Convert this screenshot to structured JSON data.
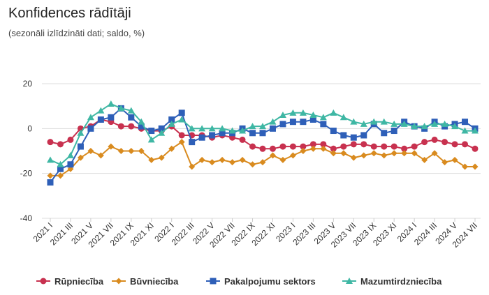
{
  "chart_data": {
    "type": "line",
    "title": "Konfidences rādītāji",
    "subtitle": "(sezonāli izlīdzināti dati; saldo, %)",
    "xlabel": "",
    "ylabel": "",
    "ylim": [
      -40,
      20
    ],
    "yticks": [
      20,
      0,
      -20,
      -40
    ],
    "grid": true,
    "legend": "bottom",
    "x": [
      "2021 I",
      "2021 II",
      "2021 III",
      "2021 IV",
      "2021 V",
      "2021 VI",
      "2021 VII",
      "2021 VIII",
      "2021 IX",
      "2021 X",
      "2021 XI",
      "2021 XII",
      "2022 I",
      "2022 II",
      "2022 III",
      "2022 IV",
      "2022 V",
      "2022 VI",
      "2022 VII",
      "2022 VIII",
      "2022 IX",
      "2022 X",
      "2022 XI",
      "2022 XII",
      "2023 I",
      "2023 II",
      "2023 III",
      "2023 IV",
      "2023 V",
      "2023 VI",
      "2023 VII",
      "2023 VIII",
      "2023 IX",
      "2023 X",
      "2023 XI",
      "2023 XII",
      "2024 I",
      "2024 II",
      "2024 III",
      "2024 IV",
      "2024 V",
      "2024 VI",
      "2024 VII"
    ],
    "x_tick_labels": [
      "2021 I",
      "2021 III",
      "2021 V",
      "2021 VII",
      "2021 IX",
      "2021 XI",
      "2022 I",
      "2022 III",
      "2022 V",
      "2022 VII",
      "2022 IX",
      "2022 XI",
      "2023 I",
      "2023 III",
      "2023 V",
      "2023 VII",
      "2023 IX",
      "2023 XI",
      "2024 I",
      "2024 III",
      "2024 V",
      "2024 VII"
    ],
    "series": [
      {
        "name": "Rūpniecība",
        "color": "#c8314f",
        "marker": "circle",
        "values": [
          -6,
          -7,
          -5,
          0,
          1,
          4,
          3,
          1,
          1,
          0,
          -1,
          -1,
          1,
          -3,
          -3,
          -3,
          -4,
          -3,
          -4,
          -5,
          -8,
          -9,
          -9,
          -8,
          -8,
          -8,
          -7,
          -7,
          -9,
          -8,
          -7,
          -7,
          -8,
          -8,
          -8,
          -9,
          -8,
          -6,
          -5,
          -6,
          -7,
          -7,
          -9
        ]
      },
      {
        "name": "Būvniecība",
        "color": "#d98b1f",
        "marker": "diamond",
        "values": [
          -21,
          -21,
          -18,
          -13,
          -10,
          -12,
          -8,
          -10,
          -10,
          -10,
          -14,
          -13,
          -9,
          -6,
          -17,
          -14,
          -15,
          -14,
          -15,
          -14,
          -16,
          -15,
          -12,
          -14,
          -12,
          -10,
          -9,
          -9,
          -11,
          -11,
          -13,
          -12,
          -11,
          -12,
          -11,
          -11,
          -11,
          -14,
          -11,
          -15,
          -14,
          -17,
          -17
        ]
      },
      {
        "name": "Pakalpojumu sektors",
        "color": "#2e5fb8",
        "marker": "square",
        "values": [
          -24,
          -18,
          -16,
          -8,
          0,
          4,
          5,
          9,
          5,
          1,
          -1,
          0,
          4,
          7,
          -6,
          -4,
          -3,
          -2,
          -2,
          0,
          -2,
          -2,
          0,
          2,
          3,
          3,
          4,
          2,
          -1,
          -3,
          -4,
          -3,
          2,
          -2,
          -1,
          3,
          1,
          0,
          3,
          1,
          2,
          3,
          0
        ]
      },
      {
        "name": "Mazumtirdzniecība",
        "color": "#3fb7a4",
        "marker": "triangle",
        "values": [
          -14,
          -16,
          -12,
          -2,
          5,
          8,
          11,
          9,
          8,
          3,
          -5,
          -2,
          2,
          4,
          0,
          0,
          0,
          0,
          -1,
          -1,
          1,
          1,
          3,
          6,
          7,
          7,
          6,
          5,
          7,
          5,
          3,
          2,
          3,
          3,
          2,
          2,
          1,
          1,
          2,
          2,
          1,
          -1,
          -1
        ]
      }
    ]
  }
}
